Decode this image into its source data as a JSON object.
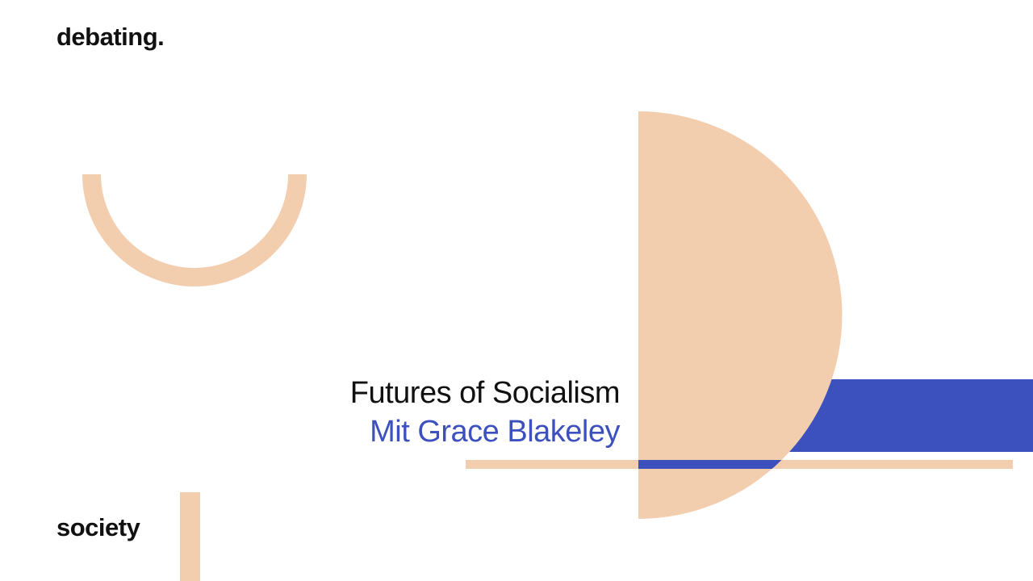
{
  "brand": {
    "top": "debating.",
    "bottom": "society"
  },
  "slide": {
    "title": "Futures of Socialism",
    "subtitle": "Mit Grace Blakeley"
  },
  "colors": {
    "beige": "#F2CEAF",
    "blue": "#3C50BE",
    "text": "#111111"
  }
}
